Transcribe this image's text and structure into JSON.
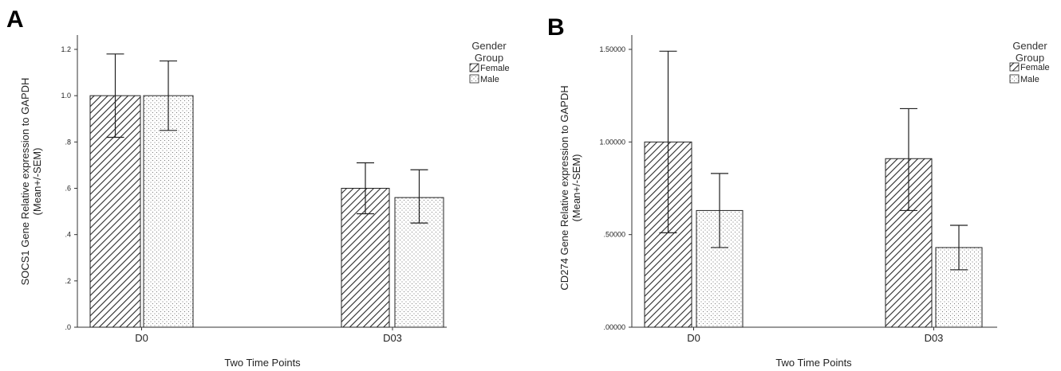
{
  "chart_data": [
    {
      "type": "bar",
      "panel_label": "A",
      "xlabel": "Two Time Points",
      "ylabel_line1": "SOCS1 Gene Relative expression to GAPDH",
      "ylabel_line2": "(Mean+/-SEM)",
      "categories": [
        "D0",
        "D03"
      ],
      "ylim": [
        0,
        1.2
      ],
      "yticks": [
        0,
        0.2,
        0.4,
        0.6,
        0.8,
        1.0,
        1.2
      ],
      "ytick_labels": [
        ".0",
        ".2",
        ".4",
        ".6",
        ".8",
        "1.0",
        "1.2"
      ],
      "legend_title_line1": "Gender",
      "legend_title_line2": "Group",
      "legend_position": "top-right",
      "series": [
        {
          "name": "Female",
          "pattern": "hatch",
          "values": [
            1.0,
            0.6
          ],
          "err_low": [
            0.82,
            0.49
          ],
          "err_high": [
            1.18,
            0.71
          ]
        },
        {
          "name": "Male",
          "pattern": "dots",
          "values": [
            1.0,
            0.56
          ],
          "err_low": [
            0.85,
            0.45
          ],
          "err_high": [
            1.15,
            0.68
          ]
        }
      ]
    },
    {
      "type": "bar",
      "panel_label": "B",
      "xlabel": "Two Time Points",
      "ylabel_line1": "CD274 Gene Relative expression to GAPDH",
      "ylabel_line2": "(Mean+/-SEM)",
      "categories": [
        "D0",
        "D03"
      ],
      "ylim": [
        0,
        1.5
      ],
      "yticks": [
        0,
        0.5,
        1.0,
        1.5
      ],
      "ytick_labels": [
        ".00000",
        ".50000",
        "1.00000",
        "1.50000"
      ],
      "legend_title_line1": "Gender",
      "legend_title_line2": "Group",
      "legend_position": "top-right",
      "series": [
        {
          "name": "Female",
          "pattern": "hatch",
          "values": [
            1.0,
            0.91
          ],
          "err_low": [
            0.51,
            0.63
          ],
          "err_high": [
            1.49,
            1.18
          ]
        },
        {
          "name": "Male",
          "pattern": "dots",
          "values": [
            0.63,
            0.43
          ],
          "err_low": [
            0.43,
            0.31
          ],
          "err_high": [
            0.83,
            0.55
          ]
        }
      ]
    }
  ]
}
